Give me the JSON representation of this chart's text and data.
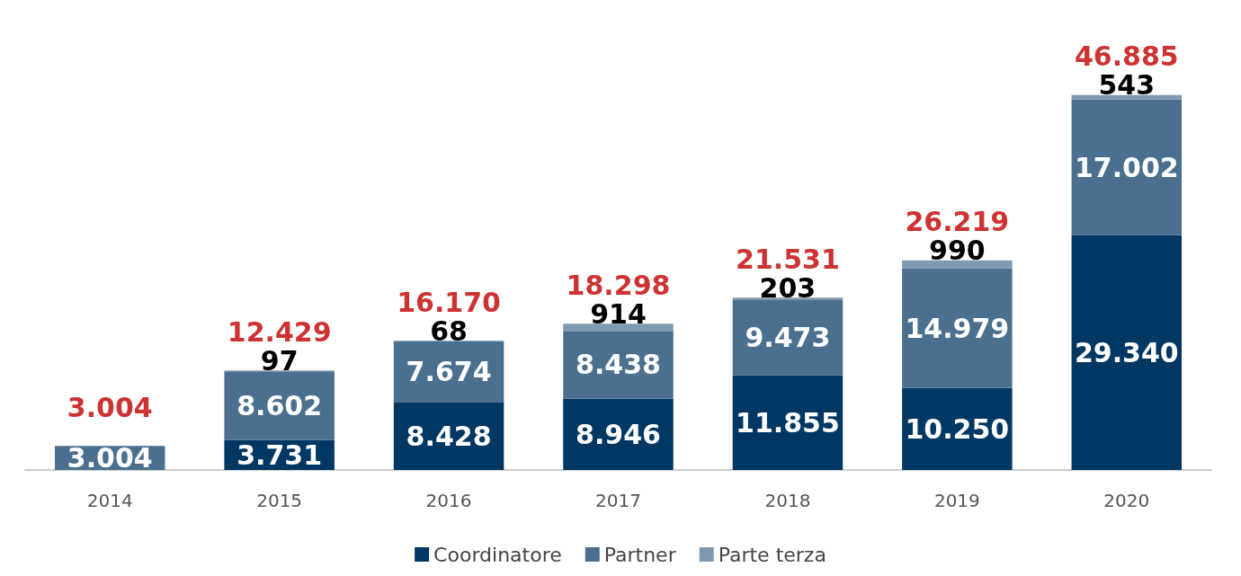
{
  "chart_data": {
    "type": "bar",
    "stacked": true,
    "categories": [
      "2014",
      "2015",
      "2016",
      "2017",
      "2018",
      "2019",
      "2020"
    ],
    "series": [
      {
        "name": "Coordinatore",
        "color": "#003763",
        "values": [
          null,
          3731,
          8428,
          8946,
          11855,
          10250,
          29340
        ],
        "value_labels": [
          null,
          "3.731",
          "8.428",
          "8.946",
          "11.855",
          "10.250",
          "29.340"
        ]
      },
      {
        "name": "Partner",
        "color": "#4a6f8f",
        "values": [
          3004,
          8602,
          7674,
          8438,
          9473,
          14979,
          17002
        ],
        "value_labels": [
          "3.004",
          "8.602",
          "7.674",
          "8.438",
          "9.473",
          "14.979",
          "17.002"
        ]
      },
      {
        "name": "Parte terza",
        "color": "#7f9ab0",
        "values": [
          null,
          97,
          68,
          914,
          203,
          990,
          543
        ],
        "value_labels": [
          null,
          "97",
          "68",
          "914",
          "203",
          "990",
          "543"
        ]
      }
    ],
    "totals": [
      "3.004",
      "12.429",
      "16.170",
      "18.298",
      "21.531",
      "26.219",
      "46.885"
    ],
    "legend": "bottom",
    "grid": false
  }
}
